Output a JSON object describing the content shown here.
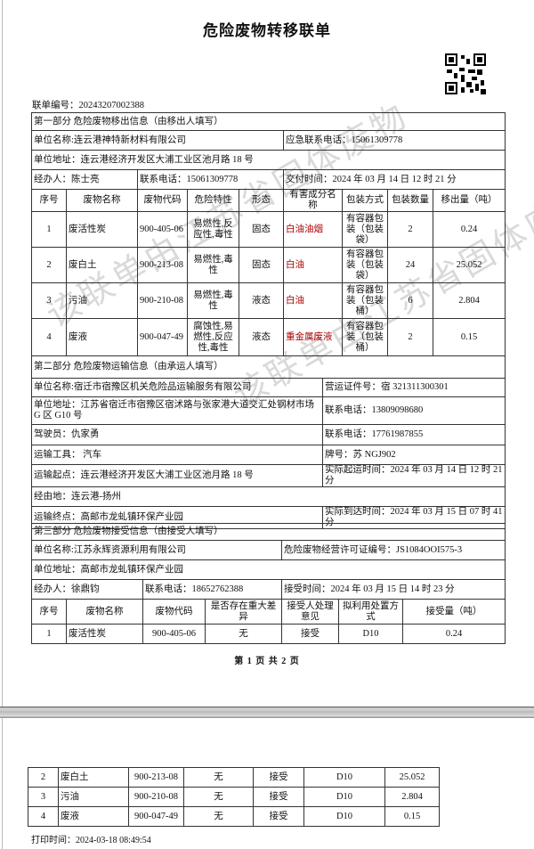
{
  "title": "危险废物转移联单",
  "manifest_no": "联单编号：20243207002388",
  "watermark": "该联单由江苏省固体废物",
  "part1": {
    "header": "第一部分 危险废物移出信息（由移出人填写）",
    "unit_name": "单位名称:连云港神特新材料有限公司",
    "emergency_phone": "应急联系电话：15061309778",
    "unit_address": "单位地址：连云港经济开发区大浦工业区池月路 18 号",
    "handler": "经办人：陈士亮",
    "phone": "联系电话：15061309778",
    "delivery_time": "交付时间：2024 年 03 月 14 日 12 时 21 分",
    "columns": [
      "序号",
      "废物名称",
      "废物代码",
      "危险特性",
      "形态",
      "有害成分名称",
      "包装方式",
      "包装数量",
      "移出量（吨）"
    ],
    "items": [
      [
        "1",
        "废活性炭",
        "900-405-06",
        "易燃性,反应性,毒性",
        "固态",
        "白油油烟",
        "有容器包装（包装袋）",
        "2",
        "0.24"
      ],
      [
        "2",
        "废白土",
        "900-213-08",
        "易燃性,毒性",
        "固态",
        "白油",
        "有容器包装（包装袋）",
        "24",
        "25.052"
      ],
      [
        "3",
        "污油",
        "900-210-08",
        "易燃性,毒性",
        "液态",
        "白油",
        "有容器包装（包装桶）",
        "6",
        "2.804"
      ],
      [
        "4",
        "废液",
        "900-047-49",
        "腐蚀性,易燃性,反应性,毒性",
        "液态",
        "重金属废液",
        "有容器包装（包装桶）",
        "2",
        "0.15"
      ]
    ]
  },
  "part2": {
    "header": "第二部分 危险废物运输信息（由承运人填写）",
    "unit_name": "单位名称:宿迁市宿豫区机关危险品运输服务有限公司",
    "license": "营运证件号：宿 321311300301",
    "unit_address": "单位地址：江苏省宿迁市宿豫区宿沭路与张家港大道交汇处钢材市场 G 区 G10 号",
    "phone1": "联系电话：13809098680",
    "driver": "驾驶员：仇家勇",
    "phone2": "联系电话：17761987855",
    "vehicle": "运输工具：  汽车",
    "plate": "牌号：苏 NGJ902",
    "origin": "运输起点：连云港经济开发区大浦工业区池月路 18 号",
    "depart_time": "实际起运时间：2024 年 03 月 14 日 12 时 21 分",
    "via": "经由地：连云港-扬州",
    "destination": "运输终点：高邮市龙虬镇环保产业园",
    "arrive_time": "实际到达时间：2024 年 03 月 15 日 07 时 41 分"
  },
  "part3": {
    "header": "第三部分 危险废物接受信息（由接受人填写）",
    "unit_name": "单位名称:江苏永辉资源利用有限公司",
    "license": "危险废物经营许可证编号：JS1084OOI575-3",
    "unit_address": "单位地址：高邮市龙虬镇环保产业园",
    "handler": "经办人：徐鼎钧",
    "phone": "联系电话：18652762388",
    "accept_time": "接受时间：2024 年 03 月 15 日 14 时 23 分",
    "columns": [
      "序号",
      "废物名称",
      "废物代码",
      "是否存在重大差异",
      "接受人处理意见",
      "拟利用处置方式",
      "接受量（吨）"
    ],
    "items": [
      [
        "1",
        "废活性炭",
        "900-405-06",
        "无",
        "接受",
        "D10",
        "0.24"
      ],
      [
        "2",
        "废白土",
        "900-213-08",
        "无",
        "接受",
        "D10",
        "25.052"
      ],
      [
        "3",
        "污油",
        "900-210-08",
        "无",
        "接受",
        "D10",
        "2.804"
      ],
      [
        "4",
        "废液",
        "900-047-49",
        "无",
        "接受",
        "D10",
        "0.15"
      ]
    ]
  },
  "page_number": "第 1 页 共 2 页",
  "print_time": "打印时间：2024-03-18 08:49:54"
}
